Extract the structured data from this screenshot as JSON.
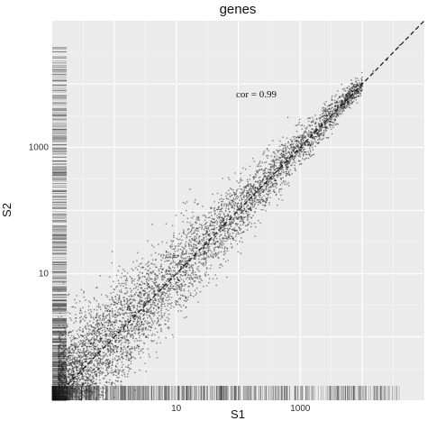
{
  "chart_data": {
    "type": "scatter",
    "title": "genes",
    "xlabel": "S1",
    "ylabel": "S2",
    "x_scale": "log10",
    "y_scale": "log10",
    "xlim": [
      0.1,
      100000
    ],
    "ylim": [
      0.1,
      100000
    ],
    "x_ticks": [
      {
        "value": 10,
        "label": "10"
      },
      {
        "value": 1000,
        "label": "1000"
      }
    ],
    "y_ticks": [
      {
        "value": 10,
        "label": "10"
      },
      {
        "value": 1000,
        "label": "1000"
      }
    ],
    "grid": true,
    "background": "#ebebeb",
    "grid_color": "#ffffff",
    "point_color": "#222222",
    "reference_line": {
      "slope": 1,
      "intercept": 0,
      "style": "dashed"
    },
    "annotation": "cor = 0.99",
    "marginal_rugs": [
      "bottom",
      "left"
    ],
    "series": [
      {
        "x": [
          0.13,
          0.2,
          0.3,
          0.5,
          0.8,
          1.2,
          2,
          3,
          5,
          8,
          12,
          20,
          35,
          60,
          100,
          180,
          300,
          500,
          900,
          1500,
          2500,
          4000,
          8000,
          15000,
          25000,
          40000
        ],
        "y": [
          0.13,
          0.25,
          0.35,
          0.55,
          0.9,
          1.3,
          2.2,
          3.2,
          5.5,
          8.5,
          13,
          21,
          34,
          62,
          105,
          175,
          310,
          520,
          880,
          1550,
          2400,
          4200,
          7800,
          16000,
          24000,
          41000
        ]
      }
    ]
  }
}
